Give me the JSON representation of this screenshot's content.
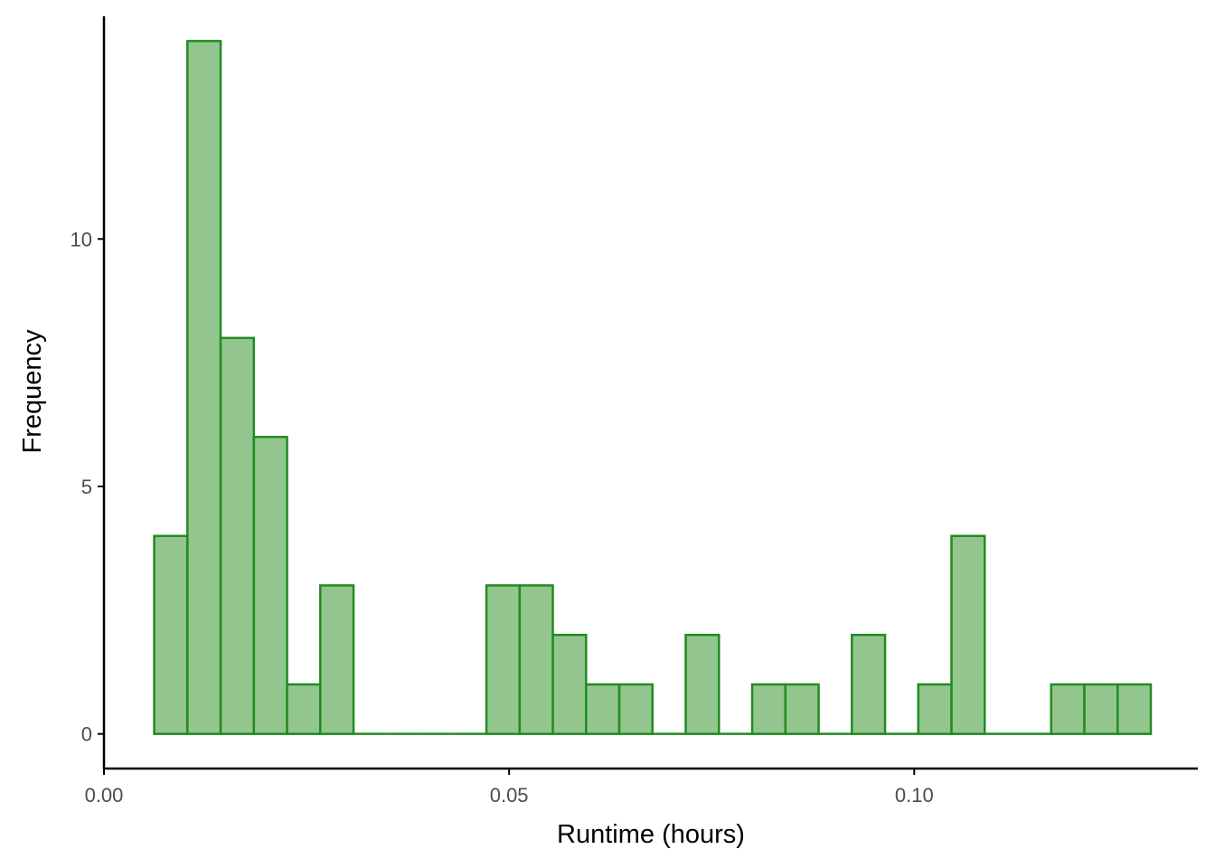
{
  "chart_data": {
    "type": "bar",
    "subtype": "histogram",
    "xlabel": "Runtime (hours)",
    "ylabel": "Frequency",
    "xlim": [
      0.0,
      0.135
    ],
    "ylim": [
      -0.7,
      14.5
    ],
    "x_ticks": [
      {
        "value": 0.0,
        "label": "0.00"
      },
      {
        "value": 0.05,
        "label": "0.05"
      },
      {
        "value": 0.1,
        "label": "0.10"
      }
    ],
    "y_ticks": [
      {
        "value": 0,
        "label": "0"
      },
      {
        "value": 5,
        "label": "5"
      },
      {
        "value": 10,
        "label": "10"
      }
    ],
    "bin_start": 0.0062,
    "bin_width": 0.0041,
    "values": [
      4,
      14,
      8,
      6,
      1,
      3,
      0,
      0,
      0,
      0,
      3,
      3,
      2,
      1,
      1,
      0,
      2,
      0,
      1,
      1,
      0,
      2,
      0,
      1,
      4,
      0,
      0,
      1,
      1,
      1
    ],
    "colors": {
      "fill": "#93c68e",
      "stroke": "#228b22",
      "axis": "#000000",
      "tick_label": "#4d4d4d"
    },
    "grid": false,
    "legend": "none"
  }
}
